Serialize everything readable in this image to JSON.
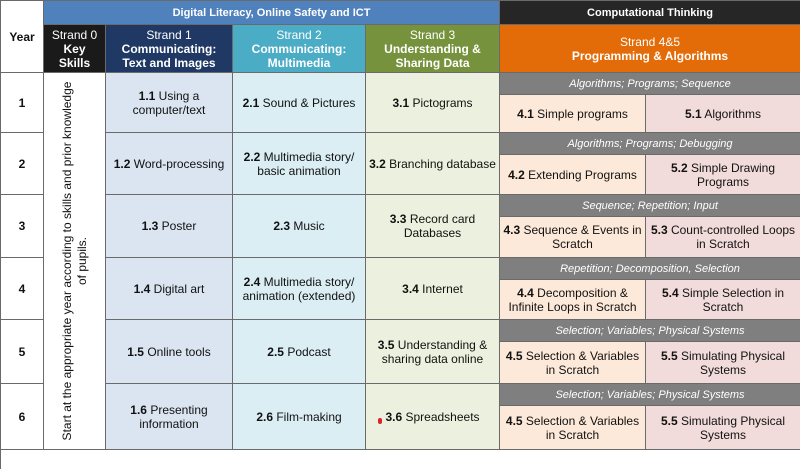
{
  "headers": {
    "digital_literacy": "Digital Literacy,  Online Safety and ICT",
    "computational_thinking": "Computational Thinking",
    "year": "Year"
  },
  "strands": {
    "s0": {
      "num": "Strand 0",
      "name1": "Key",
      "name2": "Skills"
    },
    "s1": {
      "num": "Strand 1",
      "name1": "Communicating:",
      "name2": "Text and Images"
    },
    "s2": {
      "num": "Strand 2",
      "name1": "Communicating:",
      "name2": "Multimedia"
    },
    "s3": {
      "num": "Strand 3",
      "name1": "Understanding &",
      "name2": "Sharing Data"
    },
    "s45": {
      "num": "Strand 4&5",
      "name1": "Programming & Algorithms"
    }
  },
  "strand0_text": "Start at the appropriate year according to skills and prior knowledge of pupils.",
  "years": [
    {
      "year": "1",
      "s1": {
        "code": "1.1",
        "text": " Using a computer/text"
      },
      "s2": {
        "code": "2.1",
        "text": " Sound & Pictures"
      },
      "s3": {
        "code": "3.1",
        "text": " Pictograms"
      },
      "topics": "Algorithms; Programs; Sequence",
      "s4": {
        "code": "4.1",
        "text": "  Simple programs"
      },
      "s5": {
        "code": "5.1",
        "text": "  Algorithms"
      }
    },
    {
      "year": "2",
      "s1": {
        "code": "1.2",
        "text": " Word-processing"
      },
      "s2": {
        "code": "2.2",
        "text": " Multimedia story/ basic animation"
      },
      "s3": {
        "code": "3.2",
        "text": " Branching database"
      },
      "topics": "Algorithms; Programs; Debugging",
      "s4": {
        "code": "4.2",
        "text": "  Extending Programs"
      },
      "s5": {
        "code": "5.2",
        "text": " Simple Drawing Programs"
      }
    },
    {
      "year": "3",
      "s1": {
        "code": "1.3",
        "text": " Poster"
      },
      "s2": {
        "code": "2.3",
        "text": " Music"
      },
      "s3": {
        "code": "3.3",
        "text": " Record card Databases"
      },
      "topics": "Sequence; Repetition; Input",
      "s4": {
        "code": "4.3",
        "text": " Sequence & Events in Scratch"
      },
      "s5": {
        "code": "5.3",
        "text": " Count-controlled Loops in Scratch"
      }
    },
    {
      "year": "4",
      "s1": {
        "code": "1.4",
        "text": " Digital art"
      },
      "s2": {
        "code": "2.4",
        "text": " Multimedia story/ animation (extended)"
      },
      "s3": {
        "code": "3.4",
        "text": " Internet"
      },
      "topics": "Repetition; Decomposition, Selection",
      "s4": {
        "code": "4.4",
        "text": " Decomposition & Infinite Loops in Scratch"
      },
      "s5": {
        "code": "5.4",
        "text": " Simple Selection in Scratch"
      }
    },
    {
      "year": "5",
      "s1": {
        "code": "1.5",
        "text": " Online tools"
      },
      "s2": {
        "code": "2.5",
        "text": " Podcast"
      },
      "s3": {
        "code": "3.5",
        "text": " Understanding & sharing data online"
      },
      "topics": "Selection; Variables; Physical Systems",
      "s4": {
        "code": "4.5",
        "text": " Selection & Variables in Scratch"
      },
      "s5": {
        "code": "5.5",
        "text": " Simulating Physical Systems"
      }
    },
    {
      "year": "6",
      "s1": {
        "code": "1.6",
        "text": " Presenting information"
      },
      "s2": {
        "code": "2.6",
        "text": " Film-making"
      },
      "s3": {
        "code": "3.6",
        "text": " Spreadsheets"
      },
      "topics": "Selection; Variables; Physical Systems",
      "s4": {
        "code": "4.5",
        "text": " Selection & Variables in Scratch"
      },
      "s5": {
        "code": "5.5",
        "text": " Simulating Physical Systems"
      }
    }
  ]
}
